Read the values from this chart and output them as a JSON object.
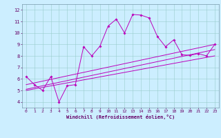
{
  "xlabel": "Windchill (Refroidissement éolien,°C)",
  "bg_color": "#cceeff",
  "line_color": "#bb00bb",
  "grid_color": "#99cccc",
  "x_ticks": [
    0,
    1,
    2,
    3,
    4,
    5,
    6,
    7,
    8,
    9,
    10,
    11,
    12,
    13,
    14,
    15,
    16,
    17,
    18,
    19,
    20,
    21,
    22,
    23
  ],
  "y_ticks": [
    4,
    5,
    6,
    7,
    8,
    9,
    10,
    11,
    12
  ],
  "xlim": [
    -0.5,
    23.5
  ],
  "ylim": [
    3.5,
    12.5
  ],
  "series1_x": [
    0,
    1,
    2,
    3,
    4,
    5,
    6,
    7,
    8,
    9,
    10,
    11,
    12,
    13,
    14,
    15,
    16,
    17,
    18,
    19,
    20,
    21,
    22,
    23
  ],
  "series1_y": [
    6.2,
    5.5,
    5.0,
    6.2,
    4.0,
    5.4,
    5.5,
    8.8,
    8.0,
    8.85,
    10.6,
    11.2,
    10.0,
    11.6,
    11.55,
    11.3,
    9.7,
    8.8,
    9.4,
    8.1,
    8.05,
    8.2,
    8.0,
    9.0
  ],
  "series2_x": [
    0,
    23
  ],
  "series2_y": [
    5.1,
    8.55
  ],
  "series3_x": [
    0,
    23
  ],
  "series3_y": [
    5.5,
    9.0
  ],
  "series4_x": [
    0,
    23
  ],
  "series4_y": [
    5.0,
    8.0
  ]
}
